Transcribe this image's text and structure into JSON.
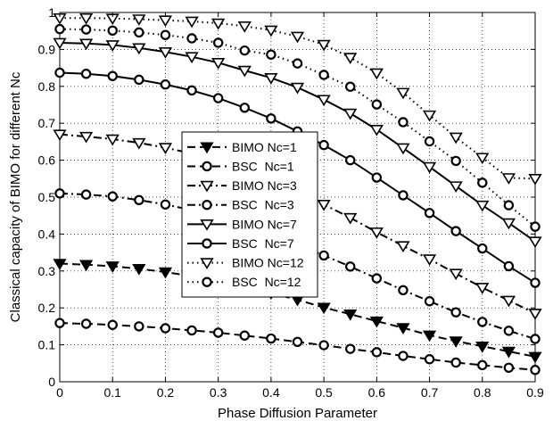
{
  "chart_data": {
    "type": "line",
    "xlabel": "Phase Diffusion Parameter",
    "ylabel": "Classical capacity of BIMO for different Nc",
    "xlim": [
      0,
      0.9
    ],
    "ylim": [
      0,
      1
    ],
    "x_ticks": [
      "0",
      "0.1",
      "0.2",
      "0.3",
      "0.4",
      "0.5",
      "0.6",
      "0.7",
      "0.8",
      "0.9"
    ],
    "y_ticks": [
      "0",
      "0.1",
      "0.2",
      "0.3",
      "0.4",
      "0.5",
      "0.6",
      "0.7",
      "0.8",
      "0.9",
      "1"
    ],
    "grid": true,
    "legend_position": "center-left",
    "x": [
      0,
      0.05,
      0.1,
      0.15,
      0.2,
      0.25,
      0.3,
      0.35,
      0.4,
      0.45,
      0.5,
      0.55,
      0.6,
      0.65,
      0.7,
      0.75,
      0.8,
      0.85,
      0.9
    ],
    "series": [
      {
        "name": "BIMO Nc=1",
        "line": "dashed",
        "marker": "triangle-down",
        "filled": true,
        "values": [
          0.32,
          0.317,
          0.313,
          0.306,
          0.297,
          0.286,
          0.273,
          0.258,
          0.24,
          0.222,
          0.201,
          0.183,
          0.164,
          0.146,
          0.126,
          0.11,
          0.096,
          0.082,
          0.068
        ]
      },
      {
        "name": "BSC  Nc=1",
        "line": "dashed",
        "marker": "circle",
        "filled": false,
        "values": [
          0.159,
          0.157,
          0.154,
          0.15,
          0.145,
          0.139,
          0.133,
          0.125,
          0.117,
          0.108,
          0.099,
          0.089,
          0.08,
          0.07,
          0.061,
          0.052,
          0.045,
          0.038,
          0.032
        ]
      },
      {
        "name": "BIMO Nc=3",
        "line": "dashdot",
        "marker": "triangle-down",
        "filled": false,
        "values": [
          0.67,
          0.664,
          0.657,
          0.647,
          0.634,
          0.618,
          0.598,
          0.574,
          0.546,
          0.514,
          0.48,
          0.444,
          0.405,
          0.368,
          0.332,
          0.293,
          0.255,
          0.22,
          0.185
        ]
      },
      {
        "name": "BSC  Nc=3",
        "line": "dashdot",
        "marker": "circle",
        "filled": false,
        "values": [
          0.51,
          0.507,
          0.502,
          0.492,
          0.48,
          0.465,
          0.447,
          0.425,
          0.4,
          0.372,
          0.342,
          0.312,
          0.28,
          0.248,
          0.218,
          0.188,
          0.162,
          0.138,
          0.116
        ]
      },
      {
        "name": "BIMO Nc=7",
        "line": "solid",
        "marker": "triangle-down",
        "filled": false,
        "values": [
          0.918,
          0.916,
          0.912,
          0.904,
          0.893,
          0.88,
          0.864,
          0.843,
          0.823,
          0.797,
          0.764,
          0.727,
          0.683,
          0.633,
          0.582,
          0.53,
          0.478,
          0.43,
          0.38
        ]
      },
      {
        "name": "BSC  Nc=7",
        "line": "solid",
        "marker": "circle",
        "filled": false,
        "values": [
          0.837,
          0.834,
          0.828,
          0.818,
          0.805,
          0.789,
          0.768,
          0.742,
          0.713,
          0.678,
          0.641,
          0.6,
          0.553,
          0.505,
          0.457,
          0.408,
          0.361,
          0.313,
          0.268
        ]
      },
      {
        "name": "BIMO Nc=12",
        "line": "dotted",
        "marker": "triangle-down",
        "filled": false,
        "values": [
          0.985,
          0.985,
          0.984,
          0.982,
          0.979,
          0.976,
          0.971,
          0.963,
          0.952,
          0.935,
          0.913,
          0.878,
          0.836,
          0.783,
          0.722,
          0.662,
          0.607,
          0.552,
          0.55
        ]
      },
      {
        "name": "BSC  Nc=12",
        "line": "dotted",
        "marker": "circle",
        "filled": false,
        "values": [
          0.955,
          0.954,
          0.951,
          0.946,
          0.939,
          0.93,
          0.918,
          0.897,
          0.886,
          0.862,
          0.831,
          0.799,
          0.751,
          0.703,
          0.651,
          0.598,
          0.539,
          0.478,
          0.42
        ]
      }
    ]
  }
}
